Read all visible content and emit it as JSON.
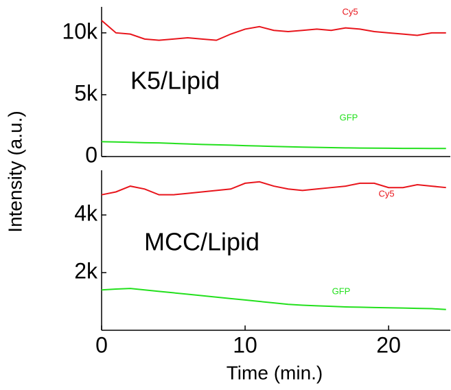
{
  "chart_data": [
    {
      "type": "line",
      "y_label": "Intensity (a.u.)",
      "annotation": "K5/Lipid",
      "x": [
        0,
        1,
        2,
        3,
        4,
        5,
        6,
        7,
        8,
        9,
        10,
        11,
        12,
        13,
        14,
        15,
        16,
        17,
        18,
        19,
        20,
        21,
        22,
        23,
        24
      ],
      "xlim": [
        0,
        24.3
      ],
      "ylim": [
        0,
        12100
      ],
      "yticks": [
        0,
        {
          "value": 5000,
          "label": "5k"
        },
        {
          "value": 10000,
          "label": "10k"
        }
      ],
      "series": [
        {
          "name": "Cy5",
          "color": "#e8141b",
          "values": [
            11000,
            10000,
            9900,
            9500,
            9400,
            9500,
            9600,
            9500,
            9400,
            9900,
            10300,
            10500,
            10200,
            10100,
            10200,
            10300,
            10200,
            10400,
            10300,
            10100,
            10000,
            9900,
            9800,
            10000,
            10000
          ]
        },
        {
          "name": "GFP",
          "color": "#22e01c",
          "values": [
            1200,
            1180,
            1150,
            1120,
            1100,
            1060,
            1020,
            980,
            950,
            920,
            880,
            850,
            820,
            790,
            760,
            740,
            720,
            700,
            690,
            680,
            670,
            660,
            660,
            650,
            650
          ]
        }
      ]
    },
    {
      "type": "line",
      "x_label": "Time (min.)",
      "annotation": "MCC/Lipid",
      "x": [
        0,
        1,
        2,
        3,
        4,
        5,
        6,
        7,
        8,
        9,
        10,
        11,
        12,
        13,
        14,
        15,
        16,
        17,
        18,
        19,
        20,
        21,
        22,
        23,
        24
      ],
      "xlim": [
        0,
        24.3
      ],
      "ylim": [
        0,
        5550
      ],
      "xticks": [
        0,
        10,
        20
      ],
      "yticks": [
        {
          "value": 2000,
          "label": "2k"
        },
        {
          "value": 4000,
          "label": "4k"
        }
      ],
      "series": [
        {
          "name": "Cy5",
          "color": "#e8141b",
          "values": [
            4700,
            4800,
            5000,
            4900,
            4700,
            4700,
            4750,
            4800,
            4850,
            4900,
            5100,
            5150,
            5000,
            4900,
            4850,
            4900,
            4950,
            5000,
            5100,
            5100,
            4950,
            4950,
            5050,
            5000,
            4950
          ]
        },
        {
          "name": "GFP",
          "color": "#22e01c",
          "values": [
            1400,
            1430,
            1450,
            1400,
            1350,
            1300,
            1250,
            1200,
            1150,
            1100,
            1050,
            1000,
            950,
            900,
            870,
            850,
            830,
            810,
            800,
            790,
            780,
            770,
            760,
            750,
            720
          ]
        }
      ]
    }
  ]
}
